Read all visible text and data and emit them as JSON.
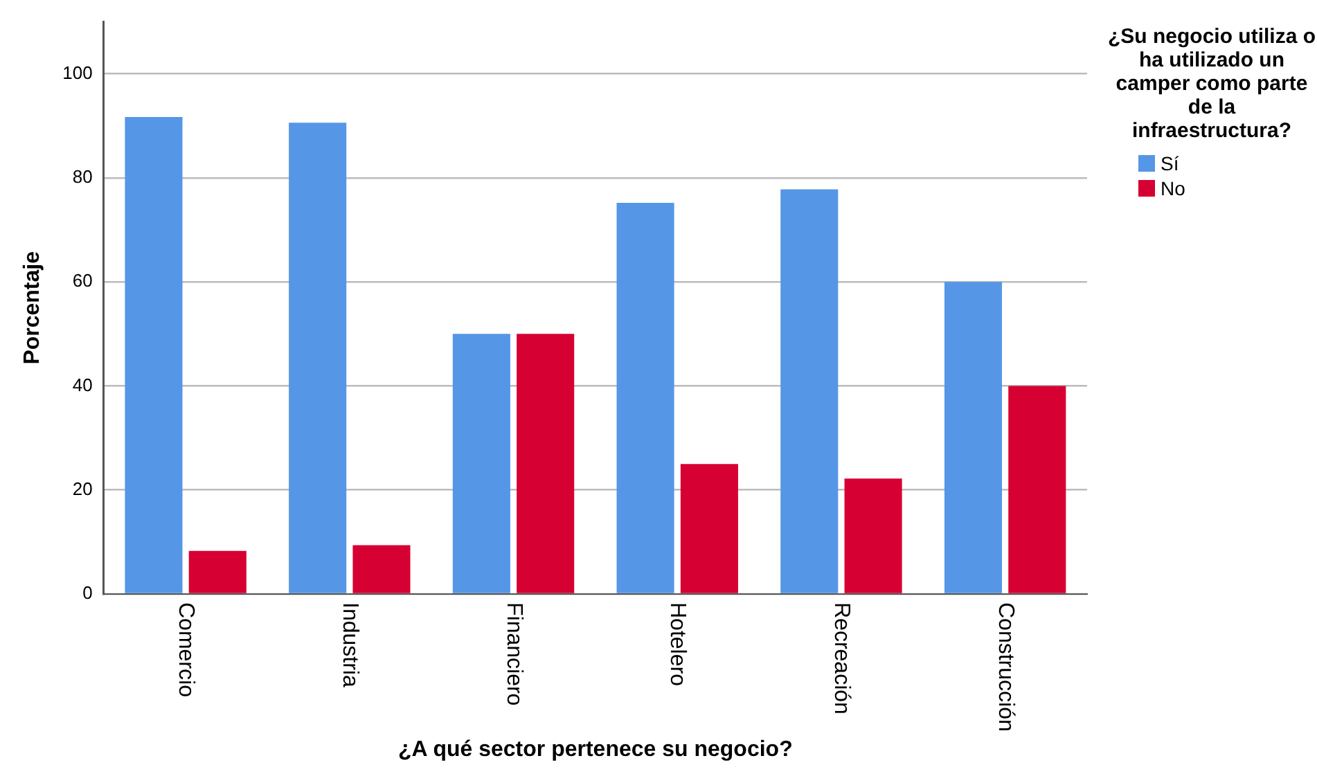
{
  "chart_data": {
    "type": "bar",
    "xlabel": "¿A qué sector pertenece su negocio?",
    "ylabel": "Porcentaje",
    "legend_title": "¿Su negocio utiliza o ha utilizado un camper como parte de la infraestructura?",
    "categories": [
      "Comercio",
      "Industria",
      "Financiero",
      "Hotelero",
      "Recreación",
      "Construcción"
    ],
    "series": [
      {
        "name": "Sí",
        "color": "#5596e6",
        "values": [
          91.7,
          90.6,
          50,
          75.2,
          77.8,
          60
        ]
      },
      {
        "name": "No",
        "color": "#d60032",
        "values": [
          8.3,
          9.4,
          50,
          25,
          22.2,
          40
        ]
      }
    ],
    "ylim": [
      0,
      110
    ],
    "yticks": [
      0,
      20,
      40,
      60,
      80,
      100
    ],
    "grid": "y",
    "legend": "top right"
  }
}
